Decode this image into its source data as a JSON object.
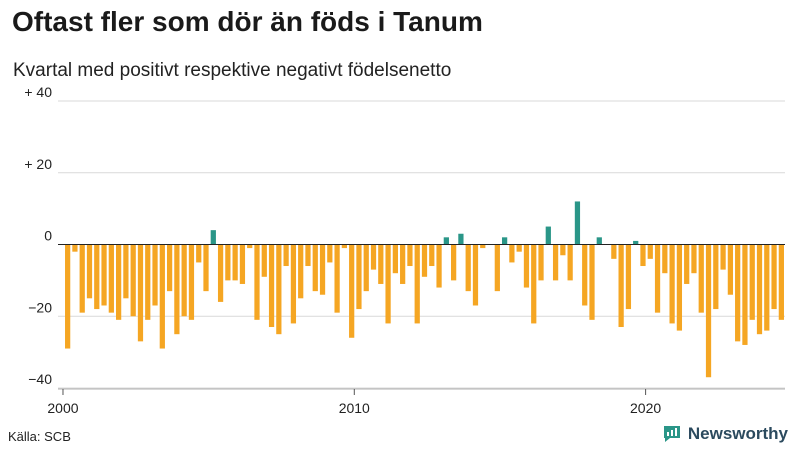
{
  "title": "Oftast fler som dör än föds i Tanum",
  "subtitle": "Kvartal med positivt respektive negativt födelsenetto",
  "source": "Källa: SCB",
  "brand": {
    "name": "Newsworthy",
    "icon": "newsworthy-logo-icon"
  },
  "colors": {
    "negative": "#F5A623",
    "positive": "#2A9688",
    "grid": "#d9d9d9",
    "zero_line": "#222222"
  },
  "chart_data": {
    "type": "bar",
    "title": "Oftast fler som dör än föds i Tanum",
    "subtitle": "Kvartal med positivt respektive negativt födelsenetto",
    "x_start": "2000 Q1",
    "x_tick_labels": [
      "2000",
      "2010",
      "2020"
    ],
    "y_tick_labels": [
      "−40",
      "−20",
      "0",
      "+ 20",
      "+ 40"
    ],
    "ylim": [
      -40,
      40
    ],
    "grid": true,
    "values": [
      -29,
      -2,
      -19,
      -15,
      -18,
      -17,
      -19,
      -21,
      -15,
      -20,
      -27,
      -21,
      -17,
      -29,
      -13,
      -25,
      -20,
      -21,
      -5,
      -13,
      4,
      -16,
      -10,
      -10,
      -11,
      -1,
      -21,
      -9,
      -23,
      -25,
      -6,
      -22,
      -15,
      -6,
      -13,
      -14,
      -5,
      -19,
      -1,
      -26,
      -18,
      -13,
      -7,
      -11,
      -22,
      -8,
      -11,
      -6,
      -22,
      -9,
      -6,
      -12,
      2,
      -10,
      3,
      -13,
      -17,
      -1,
      0,
      -13,
      2,
      -5,
      -2,
      -12,
      -22,
      -10,
      5,
      -10,
      -3,
      -10,
      12,
      -17,
      -21,
      2,
      0,
      -4,
      -23,
      -18,
      1,
      -6,
      -4,
      -19,
      -8,
      -22,
      -24,
      -11,
      -8,
      -19,
      -37,
      -18,
      -7,
      -14,
      -27,
      -28,
      -21,
      -25,
      -24,
      -18,
      -21
    ]
  }
}
